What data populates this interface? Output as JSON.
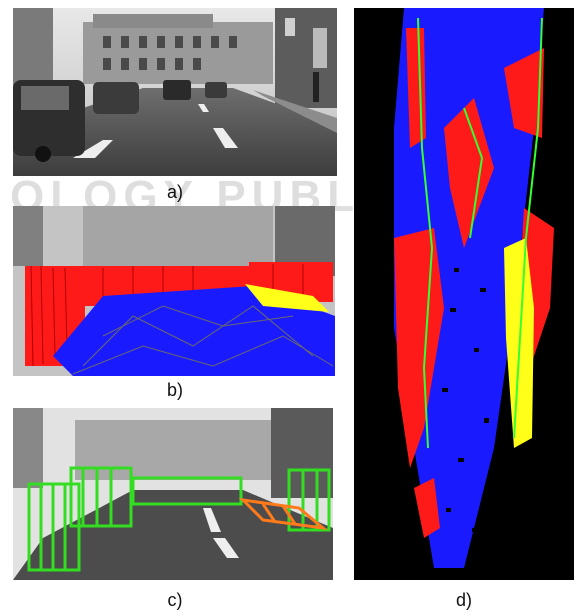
{
  "captions": {
    "a": "a)",
    "b": "b)",
    "c": "c)",
    "d": "d)"
  },
  "watermark": "OLOGY PUBLIC",
  "colors": {
    "obstacle": "#ff1a1a",
    "road": "#1a1aff",
    "traffic_isle": "#ffff1a",
    "boundary": "#33ff33",
    "obstacle_box": "#33dd22",
    "isle_box": "#ff7a1a",
    "background": "#000000"
  }
}
